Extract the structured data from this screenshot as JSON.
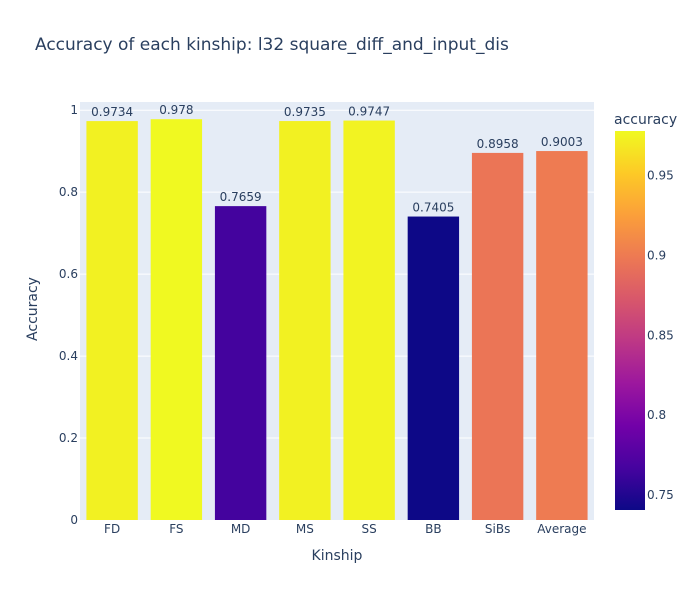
{
  "chart_data": {
    "type": "bar",
    "title": "Accuracy of each kinship: l32 square_diff_and_input_dis",
    "xlabel": "Kinship",
    "ylabel": "Accuracy",
    "categories": [
      "FD",
      "FS",
      "MD",
      "MS",
      "SS",
      "BB",
      "SiBs",
      "Average"
    ],
    "values": [
      0.9734,
      0.978,
      0.7659,
      0.9735,
      0.9747,
      0.7405,
      0.8958,
      0.9003
    ],
    "value_labels": [
      "0.9734",
      "0.978",
      "0.7659",
      "0.9735",
      "0.9747",
      "0.7405",
      "0.8958",
      "0.9003"
    ],
    "ylim": [
      0,
      1.02
    ],
    "yticks": [
      0,
      0.2,
      0.4,
      0.6,
      0.8,
      1
    ],
    "ytick_labels": [
      "0",
      "0.2",
      "0.4",
      "0.6",
      "0.8",
      "1"
    ],
    "grid": true,
    "colorbar": {
      "title": "accuracy",
      "range": [
        0.7405,
        0.978
      ],
      "ticks": [
        0.75,
        0.8,
        0.85,
        0.9,
        0.95
      ],
      "tick_labels": [
        "0.75",
        "0.8",
        "0.85",
        "0.9",
        "0.95"
      ],
      "colorscale": [
        "#0d0887",
        "#46039f",
        "#7201a8",
        "#9c179e",
        "#bd3786",
        "#d8576b",
        "#ed7953",
        "#fb9f3a",
        "#fdca26",
        "#f0f921"
      ]
    },
    "colors": {
      "plot_background": "#e5ecf6",
      "grid": "#ffffff",
      "text": "#2a3f5f"
    }
  }
}
